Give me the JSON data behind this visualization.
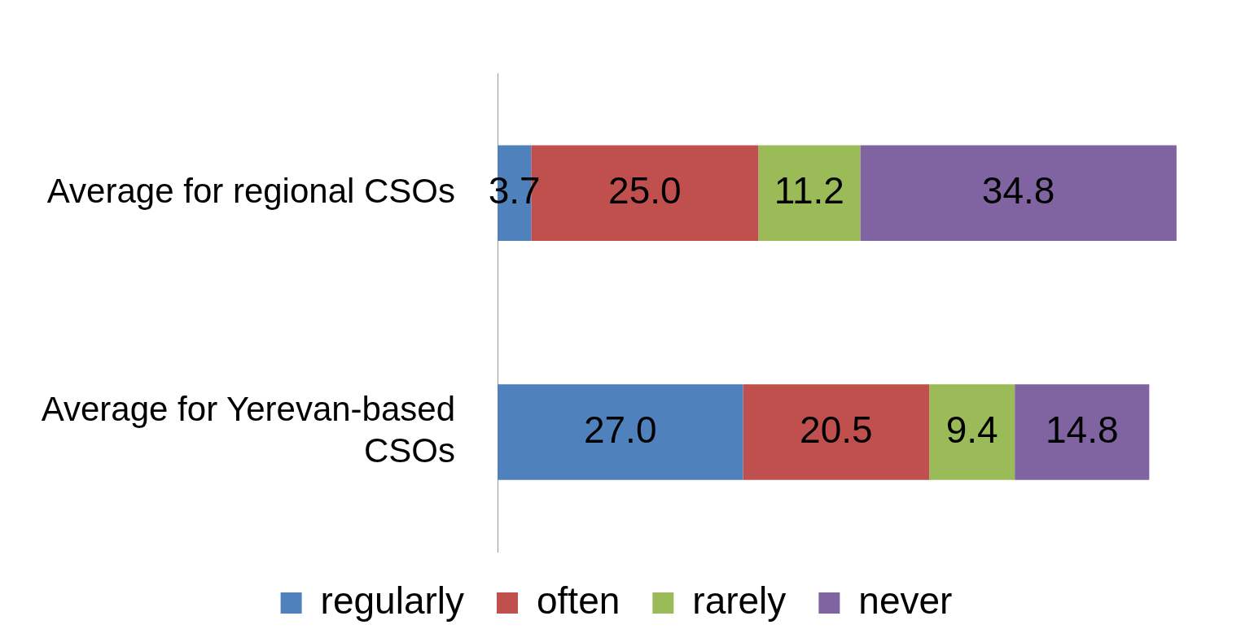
{
  "chart_data": {
    "type": "bar",
    "orientation": "horizontal",
    "stacked": true,
    "categories": [
      "Average for regional CSOs",
      "Average for Yerevan-based CSOs"
    ],
    "series": [
      {
        "name": "regularly",
        "color": "#4f81bd",
        "values": [
          3.7,
          27.0
        ],
        "value_labels": [
          "3.7",
          "27.0"
        ]
      },
      {
        "name": "often",
        "color": "#c0504d",
        "values": [
          25.0,
          20.5
        ],
        "value_labels": [
          "25.0",
          "20.5"
        ]
      },
      {
        "name": "rarely",
        "color": "#9bbb59",
        "values": [
          11.2,
          9.4
        ],
        "value_labels": [
          "11.2",
          "9.4"
        ]
      },
      {
        "name": "never",
        "color": "#8064a2",
        "values": [
          34.8,
          14.8
        ],
        "value_labels": [
          "34.8",
          "14.8"
        ]
      }
    ],
    "legend": "bottom"
  }
}
